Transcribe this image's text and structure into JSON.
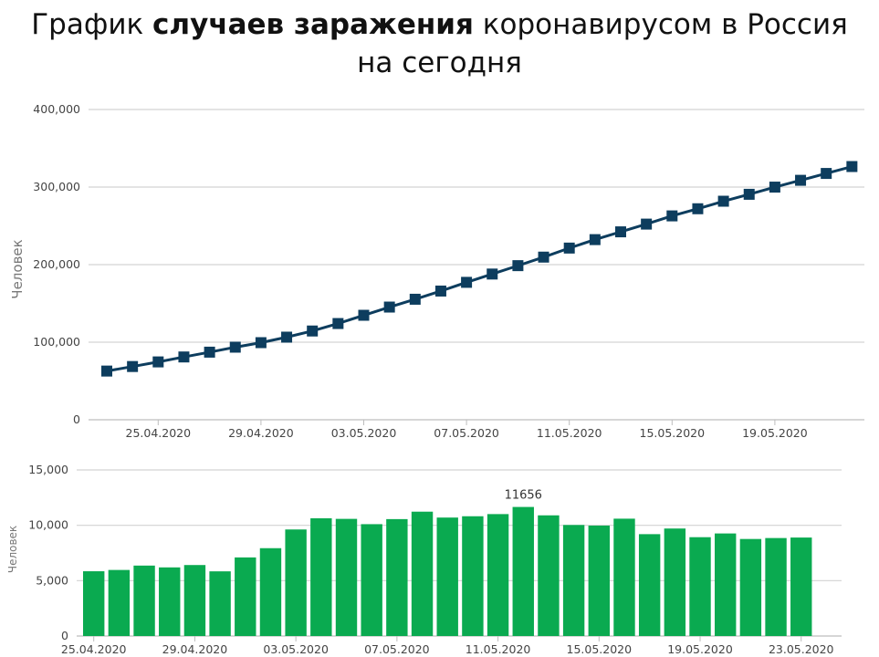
{
  "title": {
    "line1_before": "График ",
    "line1_bold": "случаев заражения",
    "line1_after": " коронавирусом в Россия",
    "line2": "на сегодня"
  },
  "chart_data": [
    {
      "type": "line",
      "ylabel": "Человек",
      "ylim": [
        0,
        400000
      ],
      "yticks": [
        "0",
        "100,000",
        "200,000",
        "300,000",
        "400,000"
      ],
      "ytick_values": [
        0,
        100000,
        200000,
        300000,
        400000
      ],
      "xtick_labels": [
        "25.04.2020",
        "29.04.2020",
        "03.05.2020",
        "07.05.2020",
        "11.05.2020",
        "15.05.2020",
        "19.05.2020"
      ],
      "xtick_indices": [
        2,
        6,
        10,
        14,
        18,
        22,
        26
      ],
      "marker": "square",
      "color": "#0d3d5e",
      "values": [
        62773,
        68622,
        74588,
        80949,
        87147,
        93558,
        99399,
        106498,
        114431,
        124054,
        134687,
        145268,
        155370,
        165929,
        177160,
        187859,
        198676,
        209688,
        221344,
        232243,
        242271,
        252245,
        262843,
        272043,
        281752,
        290678,
        299941,
        308705,
        317554,
        326448
      ]
    },
    {
      "type": "bar",
      "ylabel": "Человек",
      "ylim": [
        0,
        15000
      ],
      "yticks": [
        "0",
        "5,000",
        "10,000",
        "15,000"
      ],
      "ytick_values": [
        0,
        5000,
        10000,
        15000
      ],
      "xtick_labels": [
        "25.04.2020",
        "29.04.2020",
        "03.05.2020",
        "07.05.2020",
        "11.05.2020",
        "15.05.2020",
        "19.05.2020",
        "23.05.2020"
      ],
      "xtick_indices": [
        0,
        4,
        8,
        12,
        16,
        20,
        24,
        28
      ],
      "color": "#0aaa50",
      "values": [
        5849,
        5966,
        6361,
        6198,
        6411,
        5841,
        7099,
        7933,
        9623,
        10633,
        10581,
        10102,
        10559,
        11231,
        10699,
        10817,
        11012,
        11656,
        10899,
        10028,
        9974,
        10598,
        9200,
        9709,
        8926,
        9263,
        8764,
        8849,
        8894
      ],
      "data_label": {
        "index": 17,
        "text": "11656"
      }
    }
  ]
}
